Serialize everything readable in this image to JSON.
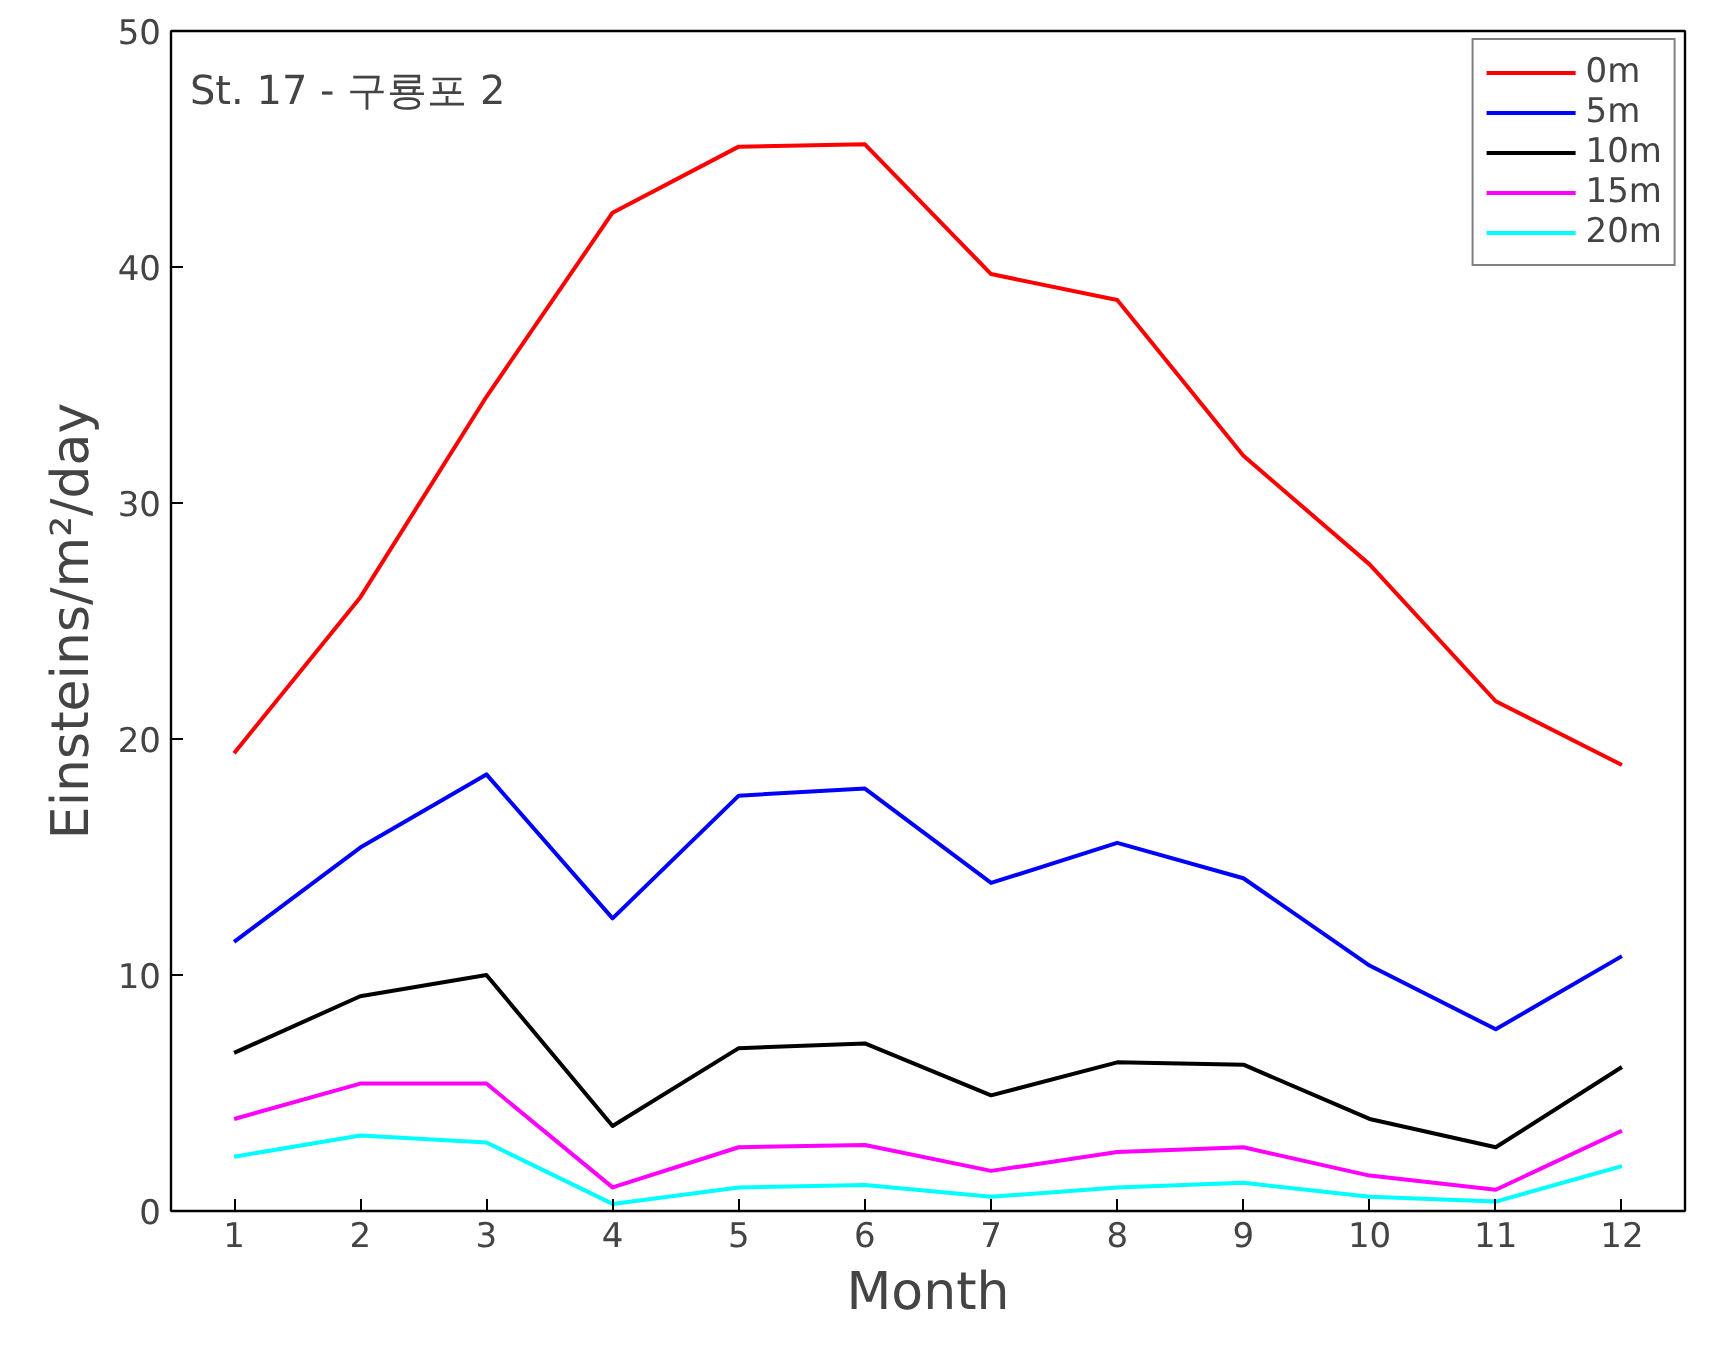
{
  "chart_data": {
    "type": "line",
    "title": "St. 17 - 구룡포 2",
    "xlabel": "Month",
    "ylabel": "Einsteins/m²/day",
    "x": [
      1,
      2,
      3,
      4,
      5,
      6,
      7,
      8,
      9,
      10,
      11,
      12
    ],
    "xlim": [
      0.5,
      12.5
    ],
    "xticks": [
      1,
      2,
      3,
      4,
      5,
      6,
      7,
      8,
      9,
      10,
      11,
      12
    ],
    "ylim": [
      0,
      50
    ],
    "yticks": [
      0,
      10,
      20,
      30,
      40,
      50
    ],
    "grid": false,
    "legend": "top right",
    "marker": "none",
    "line_style": "solid",
    "series": [
      {
        "name": "0m",
        "color": "#ff0000",
        "values": [
          19.4,
          26,
          34.5,
          42.3,
          45.1,
          45.2,
          39.7,
          38.6,
          32,
          27.4,
          21.6,
          18.9
        ]
      },
      {
        "name": "5m",
        "color": "#0000ff",
        "values": [
          11.4,
          15.4,
          18.5,
          12.4,
          17.6,
          17.9,
          13.9,
          15.6,
          14.1,
          10.4,
          7.7,
          10.8
        ]
      },
      {
        "name": "10m",
        "color": "#000000",
        "values": [
          6.7,
          9.1,
          10,
          3.6,
          6.9,
          7.1,
          4.9,
          6.3,
          6.2,
          3.9,
          2.7,
          6.1
        ]
      },
      {
        "name": "15m",
        "color": "#ff00ff",
        "values": [
          3.9,
          5.4,
          5.4,
          1.0,
          2.7,
          2.8,
          1.7,
          2.5,
          2.7,
          1.5,
          0.9,
          3.4
        ]
      },
      {
        "name": "20m",
        "color": "#00ffff",
        "values": [
          2.3,
          3.2,
          2.9,
          0.3,
          1.0,
          1.1,
          0.6,
          1.0,
          1.2,
          0.6,
          0.4,
          1.9
        ]
      }
    ]
  }
}
